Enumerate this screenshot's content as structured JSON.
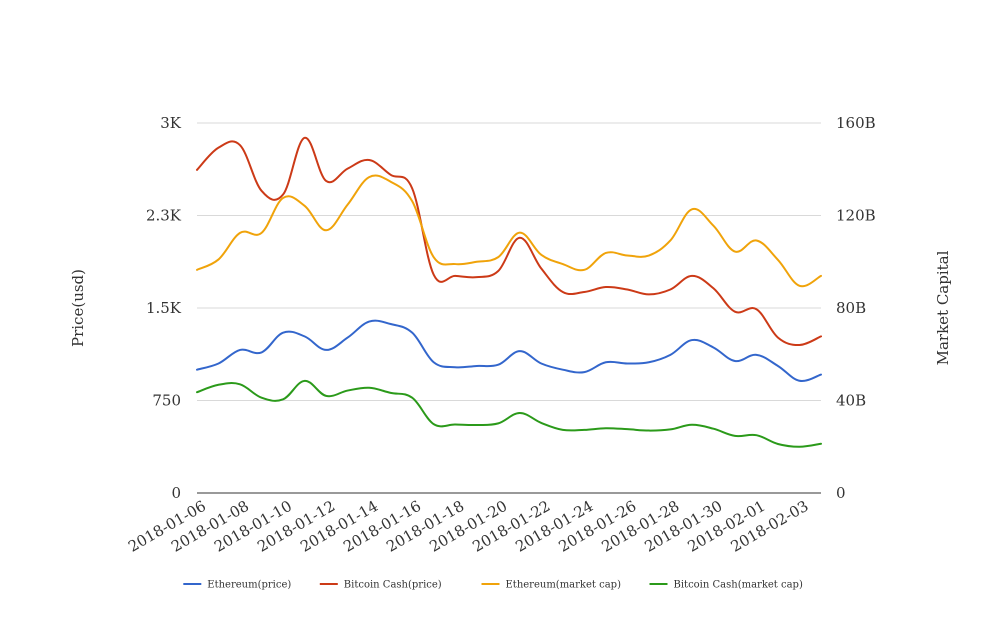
{
  "chart_data": {
    "type": "line",
    "title": "",
    "x": [
      "2018-01-06",
      "2018-01-07",
      "2018-01-08",
      "2018-01-09",
      "2018-01-10",
      "2018-01-11",
      "2018-01-12",
      "2018-01-13",
      "2018-01-14",
      "2018-01-15",
      "2018-01-16",
      "2018-01-17",
      "2018-01-18",
      "2018-01-19",
      "2018-01-20",
      "2018-01-21",
      "2018-01-22",
      "2018-01-23",
      "2018-01-24",
      "2018-01-25",
      "2018-01-26",
      "2018-01-27",
      "2018-01-28",
      "2018-01-29",
      "2018-01-30",
      "2018-01-31",
      "2018-02-01",
      "2018-02-02",
      "2018-02-03",
      "2018-02-04"
    ],
    "x_tick_labels": [
      "2018-01-06",
      "2018-01-08",
      "2018-01-10",
      "2018-01-12",
      "2018-01-14",
      "2018-01-16",
      "2018-01-18",
      "2018-01-20",
      "2018-01-22",
      "2018-01-24",
      "2018-01-26",
      "2018-01-28",
      "2018-01-30",
      "2018-02-01",
      "2018-02-03"
    ],
    "left_axis": {
      "label": "Price(usd)",
      "ylim": [
        0,
        3000
      ],
      "tick_values": [
        0,
        750,
        1500,
        2250,
        3000
      ],
      "tick_labels": [
        "0",
        "750",
        "1.5K",
        "2.3K",
        "3K"
      ]
    },
    "right_axis": {
      "label": "Market Capital",
      "ylim": [
        0,
        160000000000
      ],
      "tick_values": [
        0,
        40000000000,
        80000000000,
        120000000000,
        160000000000
      ],
      "tick_labels": [
        "0",
        "40B",
        "80B",
        "120B",
        "160B"
      ]
    },
    "grid": true,
    "legend_position": "bottom",
    "series": [
      {
        "name": "Ethereum(price)",
        "color": "#3366cc",
        "axis": "left",
        "values": [
          1000,
          1050,
          1160,
          1140,
          1300,
          1270,
          1160,
          1260,
          1390,
          1370,
          1300,
          1060,
          1020,
          1030,
          1040,
          1150,
          1050,
          1000,
          980,
          1060,
          1050,
          1060,
          1120,
          1240,
          1180,
          1070,
          1120,
          1030,
          910,
          960
        ]
      },
      {
        "name": "Bitcoin Cash(price)",
        "color": "#cc3a17",
        "axis": "left",
        "values": [
          2620,
          2800,
          2820,
          2450,
          2420,
          2880,
          2530,
          2630,
          2700,
          2580,
          2470,
          1770,
          1760,
          1750,
          1800,
          2070,
          1820,
          1630,
          1630,
          1670,
          1650,
          1610,
          1650,
          1760,
          1660,
          1470,
          1490,
          1260,
          1200,
          1270
        ]
      },
      {
        "name": "Ethereum(market cap)",
        "color": "#f0a30a",
        "axis": "right",
        "values": [
          96500000000,
          101000000000,
          112500000000,
          112500000000,
          127600000000,
          124200000000,
          113600000000,
          124700000000,
          136600000000,
          134600000000,
          126200000000,
          102000000000,
          99000000000,
          100000000000,
          102000000000,
          112600000000,
          103000000000,
          99000000000,
          96500000000,
          103800000000,
          102700000000,
          102700000000,
          109200000000,
          122700000000,
          115600000000,
          104400000000,
          109200000000,
          100800000000,
          89600000000,
          93900000000
        ]
      },
      {
        "name": "Bitcoin Cash(market cap)",
        "color": "#2b9a1a",
        "axis": "right",
        "values": [
          43600000000,
          46800000000,
          47000000000,
          41200000000,
          40500000000,
          48500000000,
          42000000000,
          44300000000,
          45500000000,
          43300000000,
          41200000000,
          29800000000,
          29600000000,
          29400000000,
          30100000000,
          34600000000,
          30300000000,
          27300000000,
          27300000000,
          28000000000,
          27600000000,
          27000000000,
          27500000000,
          29500000000,
          27800000000,
          24700000000,
          25000000000,
          21200000000,
          20000000000,
          21300000000
        ]
      }
    ]
  }
}
